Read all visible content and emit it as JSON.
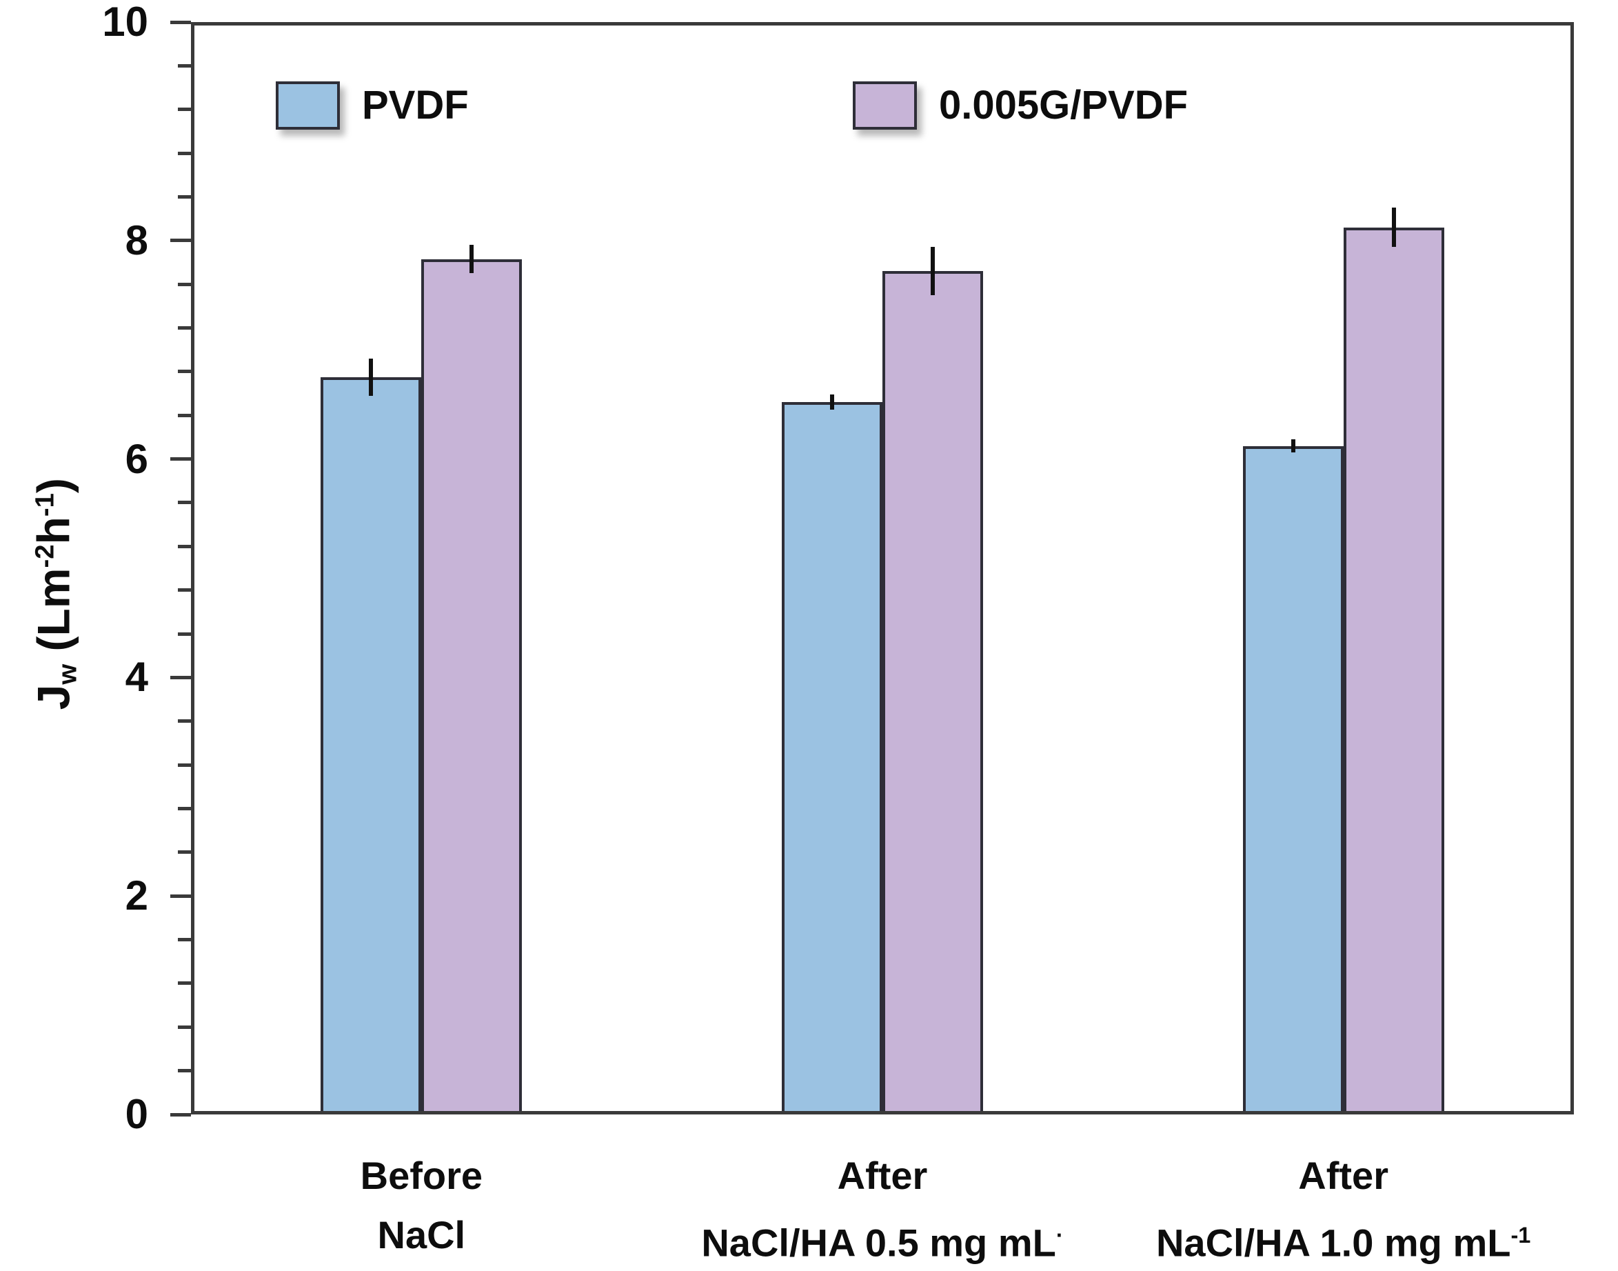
{
  "chart_data": {
    "type": "bar",
    "title": "",
    "y_axis": {
      "label_segments": [
        {
          "text": "J"
        },
        {
          "text": "w",
          "style": "sub"
        },
        {
          "text": " (Lm",
          "style": ""
        },
        {
          "text": "-2",
          "style": "sup"
        },
        {
          "text": "h",
          "style": ""
        },
        {
          "text": "-1",
          "style": "sup"
        },
        {
          "text": ")",
          "style": ""
        }
      ],
      "min": 0,
      "max": 10,
      "major_tick_step": 2,
      "minor_tick_step": 0.4,
      "tick_labels": [
        "0",
        "2",
        "4",
        "6",
        "8",
        "10"
      ]
    },
    "categories": [
      {
        "line1": "Before",
        "line2": "NaCl",
        "line2_sup": ""
      },
      {
        "line1": "After",
        "line2": "NaCl/HA 0.5 mg mL",
        "line2_sup": "·"
      },
      {
        "line1": "After",
        "line2": "NaCl/HA 1.0 mg mL",
        "line2_sup": "-1"
      }
    ],
    "series": [
      {
        "name": "PVDF",
        "color": "#9bc2e2",
        "border_color": "#2e2e38",
        "values": [
          6.75,
          6.52,
          6.12
        ],
        "errors": [
          0.17,
          0.07,
          0.06
        ]
      },
      {
        "name": "0.005G/PVDF",
        "color": "#c7b4d7",
        "border_color": "#2e2e38",
        "values": [
          7.83,
          7.72,
          8.12
        ],
        "errors": [
          0.13,
          0.22,
          0.18
        ]
      }
    ],
    "legend_position": "top-inside",
    "grid": false,
    "colors": {
      "axis": "#3a3a3a",
      "text": "#0d0d0d",
      "error_bar": "#111111",
      "background": "#ffffff"
    }
  }
}
